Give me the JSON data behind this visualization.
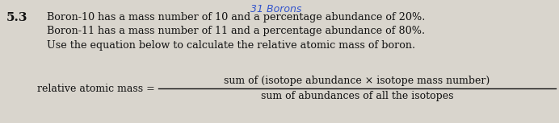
{
  "section_number": "5.3",
  "line1": "Boron-10 has a mass number of 10 and a percentage abundance of 20%.",
  "line2": "Boron-11 has a mass number of 11 and a percentage abundance of 80%.",
  "line3": "Use the equation below to calculate the relative atomic mass of boron.",
  "label": "relative atomic mass =",
  "numerator": "sum of (isotope abundance × isotope mass number)",
  "denominator": "sum of abundances of all the isotopes",
  "bg_color": "#d9d5cd",
  "text_color": "#111111",
  "handwriting": "31 Borons",
  "handwriting_color": "#3355cc",
  "section_fontsize": 11,
  "body_fontsize": 9.2,
  "eq_fontsize": 9.0
}
